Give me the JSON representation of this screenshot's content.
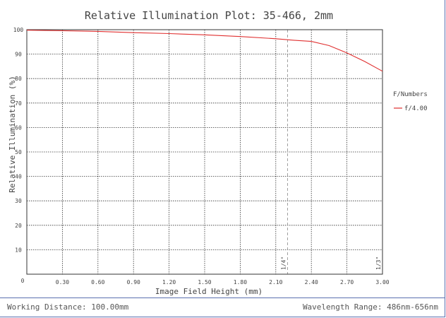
{
  "chart_data": {
    "type": "line",
    "title": "Relative Illumination Plot: 35-466, 2mm",
    "xlabel": "Image Field Height (mm)",
    "ylabel": "Relative Illumination (%)",
    "xlim": [
      0,
      3.0
    ],
    "ylim": [
      0,
      100
    ],
    "x_ticks": [
      "0",
      "0.30",
      "0.60",
      "0.90",
      "1.20",
      "1.50",
      "1.80",
      "2.10",
      "2.40",
      "2.70",
      "3.00"
    ],
    "y_ticks": [
      "0",
      "10",
      "20",
      "30",
      "40",
      "50",
      "60",
      "70",
      "80",
      "90",
      "100"
    ],
    "grid": true,
    "legend_title": "F/Numbers",
    "legend_placement": "right",
    "series": [
      {
        "name": "f/4.00",
        "color": "#e03030",
        "x": [
          0,
          0.3,
          0.6,
          0.9,
          1.2,
          1.5,
          1.8,
          2.1,
          2.25,
          2.4,
          2.55,
          2.7,
          2.85,
          3.0
        ],
        "y": [
          99.8,
          99.6,
          99.3,
          98.8,
          98.4,
          97.9,
          97.2,
          96.3,
          95.7,
          95.2,
          93.5,
          90.5,
          87.0,
          83.0
        ]
      }
    ],
    "markers": [
      {
        "label": "1/4\"",
        "x": 2.2
      },
      {
        "label": "1/3\"",
        "x": 3.0
      }
    ]
  },
  "footer": {
    "working_distance": "Working Distance: 100.00mm",
    "wavelength_range": "Wavelength Range: 486nm-656nm"
  }
}
